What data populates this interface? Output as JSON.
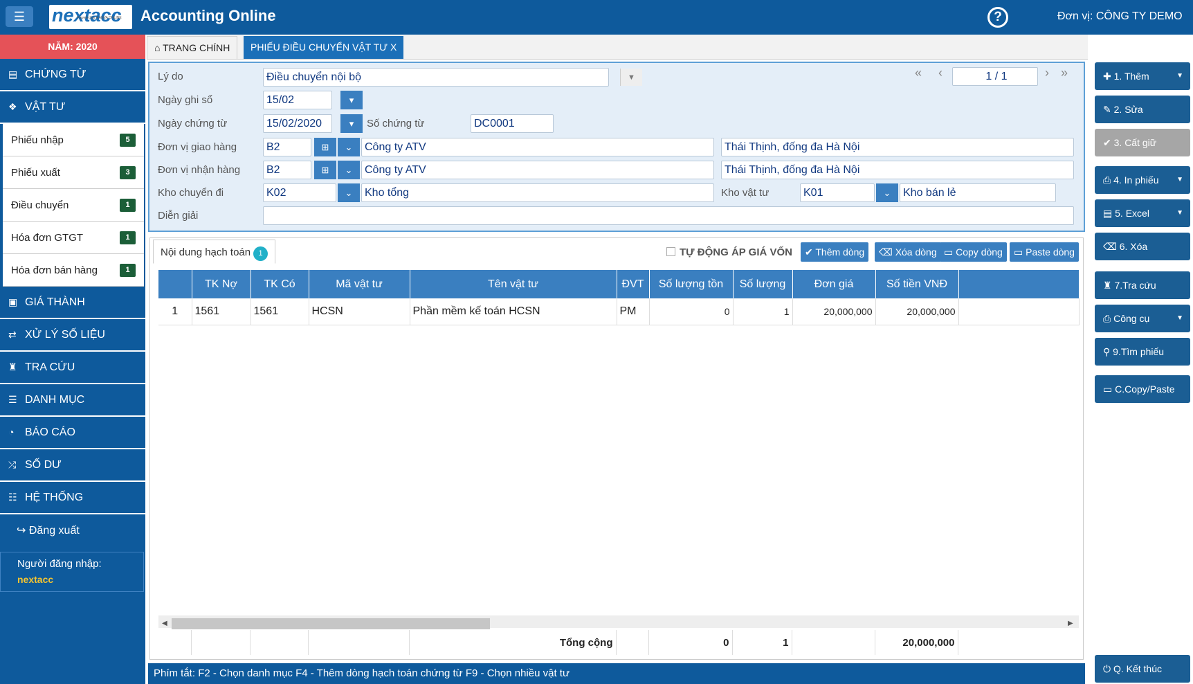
{
  "header": {
    "title": "Accounting Online",
    "logo": "nextacc",
    "logo_tag": "Powered by A ANVA ONLINE",
    "unit": "Đơn vị: CÔNG TY DEMO"
  },
  "sidebar": {
    "year": "NĂM: 2020",
    "items_top": [
      {
        "label": "CHỨNG TỪ",
        "icon": "card-icon"
      },
      {
        "label": "VẬT TƯ",
        "icon": "cubes-icon"
      }
    ],
    "sub": [
      {
        "label": "Phiếu nhập",
        "count": "5"
      },
      {
        "label": "Phiếu xuất",
        "count": "3"
      },
      {
        "label": "Điều chuyển",
        "count": "1"
      },
      {
        "label": "Hóa đơn GTGT",
        "count": "1"
      },
      {
        "label": "Hóa đơn bán hàng",
        "count": "1"
      }
    ],
    "items_bottom": [
      {
        "label": "GIÁ THÀNH"
      },
      {
        "label": "XỬ LÝ SỐ LIỆU"
      },
      {
        "label": "TRA CỨU"
      },
      {
        "label": "DANH MỤC"
      },
      {
        "label": "BÁO CÁO"
      },
      {
        "label": "SỐ DƯ"
      },
      {
        "label": "HỆ THỐNG"
      }
    ],
    "logout": "Đăng xuất",
    "user_label": "Người đăng nhập:",
    "user": "nextacc"
  },
  "tabs": {
    "home": "TRANG CHÍNH",
    "active": "PHIẾU ĐIỀU CHUYỂN VẬT TƯ X"
  },
  "form": {
    "ly_do_label": "Lý do",
    "ly_do": "Điều chuyển nội bộ",
    "ngay_ghi_so_label": "Ngày ghi sổ",
    "ngay_ghi_so": "15/02",
    "ngay_ct_label": "Ngày chứng từ",
    "ngay_ct": "15/02/2020",
    "so_ct_label": "Số chứng từ",
    "so_ct": "DC0001",
    "giao_label": "Đơn vị giao hàng",
    "giao_code": "B2",
    "giao_name": "Công ty ATV",
    "giao_addr": "Thái Thịnh, đống đa Hà Nội",
    "nhan_label": "Đơn vị nhận hàng",
    "nhan_code": "B2",
    "nhan_name": "Công ty ATV",
    "nhan_addr": "Thái Thịnh, đống đa Hà Nội",
    "kho_di_label": "Kho chuyển đi",
    "kho_di_code": "K02",
    "kho_di_name": "Kho tổng",
    "kho_vt_label": "Kho vật tư",
    "kho_vt_code": "K01",
    "kho_vt_name": "Kho bán lẻ",
    "dien_giai_label": "Diễn giải",
    "dien_giai": "",
    "pager": "1 / 1"
  },
  "grid": {
    "tab_label": "Nội dung hạch toán",
    "tab_count": "1",
    "auto_label": "TỰ ĐỘNG ÁP GIÁ VỐN",
    "buttons": {
      "add": "Thêm dòng",
      "del": "Xóa dòng",
      "copy": "Copy dòng",
      "paste": "Paste dòng"
    },
    "columns": [
      "",
      "TK Nợ",
      "TK Có",
      "Mã vật tư",
      "Tên vật tư",
      "ĐVT",
      "Số lượng tồn",
      "Số lượng",
      "Đơn giá",
      "Số tiền VNĐ",
      ""
    ],
    "rows": [
      [
        "1",
        "1561",
        "1561",
        "HCSN",
        "Phần mềm kế toán HCSN",
        "PM",
        "0",
        "1",
        "20,000,000",
        "20,000,000",
        ""
      ]
    ],
    "total_label": "Tổng cộng",
    "total_ton": "0",
    "total_sl": "1",
    "total_tien": "20,000,000"
  },
  "shortcuts": "Phím tắt:   F2 - Chọn danh mục   F4 - Thêm dòng hạch toán chứng từ   F9 - Chọn nhiều vật tư",
  "actions": {
    "them": "1. Thêm",
    "sua": "2. Sửa",
    "cat": "3. Cất giữ",
    "in": "4. In phiếu",
    "excel": "5. Excel",
    "xoa": "6. Xóa",
    "tracuu": "7.Tra cứu",
    "congcu": "Công cụ",
    "tim": "9.Tìm phiếu",
    "copy": "C.Copy/Paste",
    "ketthuc": "Q. Kết thúc"
  }
}
